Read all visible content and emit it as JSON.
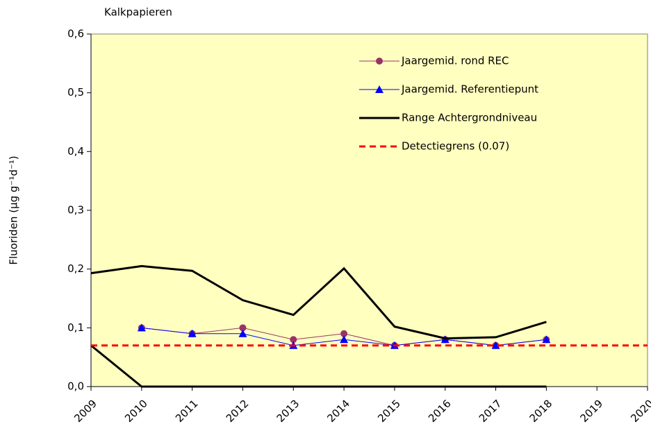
{
  "chart_data": {
    "type": "line",
    "title": "Kalkpapieren",
    "ylabel": "Fluoriden (µg g⁻¹d⁻¹)",
    "x": [
      2009,
      2010,
      2011,
      2012,
      2013,
      2014,
      2015,
      2016,
      2017,
      2018
    ],
    "series": [
      {
        "name": "Jaargemid. rond REC",
        "color": "#993366",
        "marker": "circle",
        "values": [
          null,
          0.1,
          0.09,
          0.1,
          0.08,
          0.09,
          0.07,
          0.08,
          0.07,
          0.08
        ]
      },
      {
        "name": "Jaargemid. Referentiepunt",
        "color": "#0000ff",
        "marker": "triangle",
        "values": [
          null,
          0.1,
          0.09,
          0.09,
          0.07,
          0.08,
          0.07,
          0.08,
          0.07,
          0.08
        ]
      },
      {
        "name": "Range Achtergrondniveau",
        "color": "#000000",
        "values": [
          0.193,
          0.205,
          0.197,
          0.147,
          0.122,
          0.201,
          0.102,
          0.082,
          0.084,
          0.11
        ],
        "values_low": [
          0.07,
          0,
          0,
          0,
          0,
          0,
          0,
          0,
          0,
          0
        ]
      },
      {
        "name": "Detectiegrens (0.07)",
        "color": "#ff0000",
        "dashed": true,
        "x": [
          2009,
          2020
        ],
        "values": [
          0.07,
          0.07
        ]
      }
    ],
    "xlim": [
      2009,
      2020
    ],
    "xticks": [
      2009,
      2010,
      2011,
      2012,
      2013,
      2014,
      2015,
      2016,
      2017,
      2018,
      2019,
      2020
    ],
    "ylim": [
      0,
      0.6
    ],
    "yticks": [
      {
        "value": 0,
        "label": "0,0"
      },
      {
        "value": 0.1,
        "label": "0,1"
      },
      {
        "value": 0.2,
        "label": "0,2"
      },
      {
        "value": 0.3,
        "label": "0,3"
      },
      {
        "value": 0.4,
        "label": "0,4"
      },
      {
        "value": 0.5,
        "label": "0,5"
      },
      {
        "value": 0.6,
        "label": "0,6"
      }
    ],
    "plot_background": "#ffffc0"
  }
}
